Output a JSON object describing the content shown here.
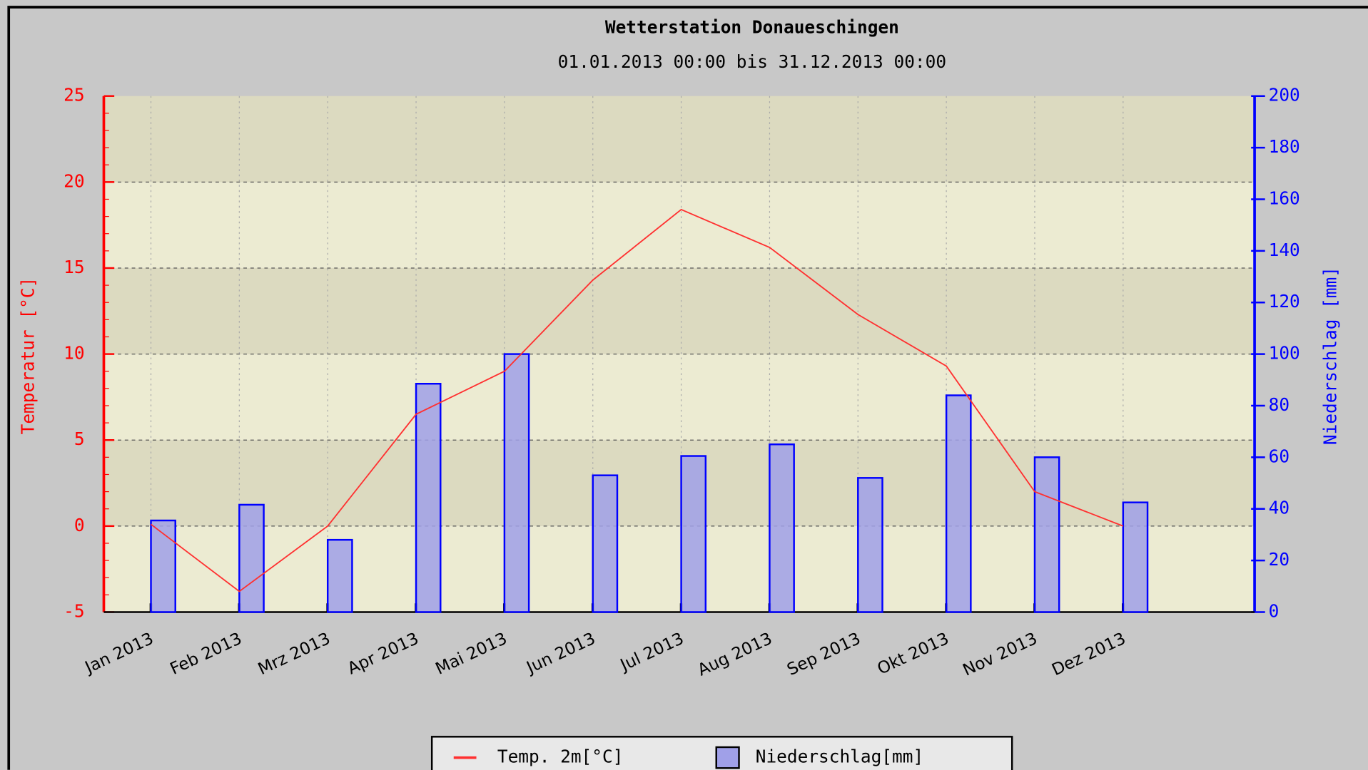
{
  "chart_data": {
    "type": "bar-line",
    "title": "Wetterstation Donaueschingen",
    "subtitle": "01.01.2013 00:00 bis 31.12.2013 00:00",
    "y_label": "Temperatur [°C]",
    "y2_label": "Niederschlag [mm]",
    "categories": [
      "Jan 2013",
      "Feb 2013",
      "Mrz 2013",
      "Apr 2013",
      "Mai 2013",
      "Jun 2013",
      "Jul 2013",
      "Aug 2013",
      "Sep 2013",
      "Okt 2013",
      "Nov 2013",
      "Dez 2013"
    ],
    "series": [
      {
        "name": "Temp. 2m[°C]",
        "type": "line",
        "color": "#ff3030",
        "values": [
          0.1,
          -3.8,
          0,
          6.5,
          9.0,
          14.3,
          18.4,
          16.2,
          12.3,
          9.3,
          2.0,
          0
        ]
      },
      {
        "name": "Niederschlag[mm]",
        "type": "bar",
        "axis": "y2",
        "color": "#a0a0e8",
        "values": [
          35.5,
          41.6,
          28,
          88.5,
          100,
          53,
          60.5,
          65,
          52,
          84,
          60,
          42.5
        ]
      }
    ],
    "ylim": [
      -5,
      25
    ],
    "yticks": [
      -5,
      0,
      5,
      10,
      15,
      20,
      25
    ],
    "y2lim": [
      0,
      200
    ],
    "y2ticks": [
      0,
      20,
      40,
      60,
      80,
      100,
      120,
      140,
      160,
      180,
      200
    ],
    "grid": true
  }
}
